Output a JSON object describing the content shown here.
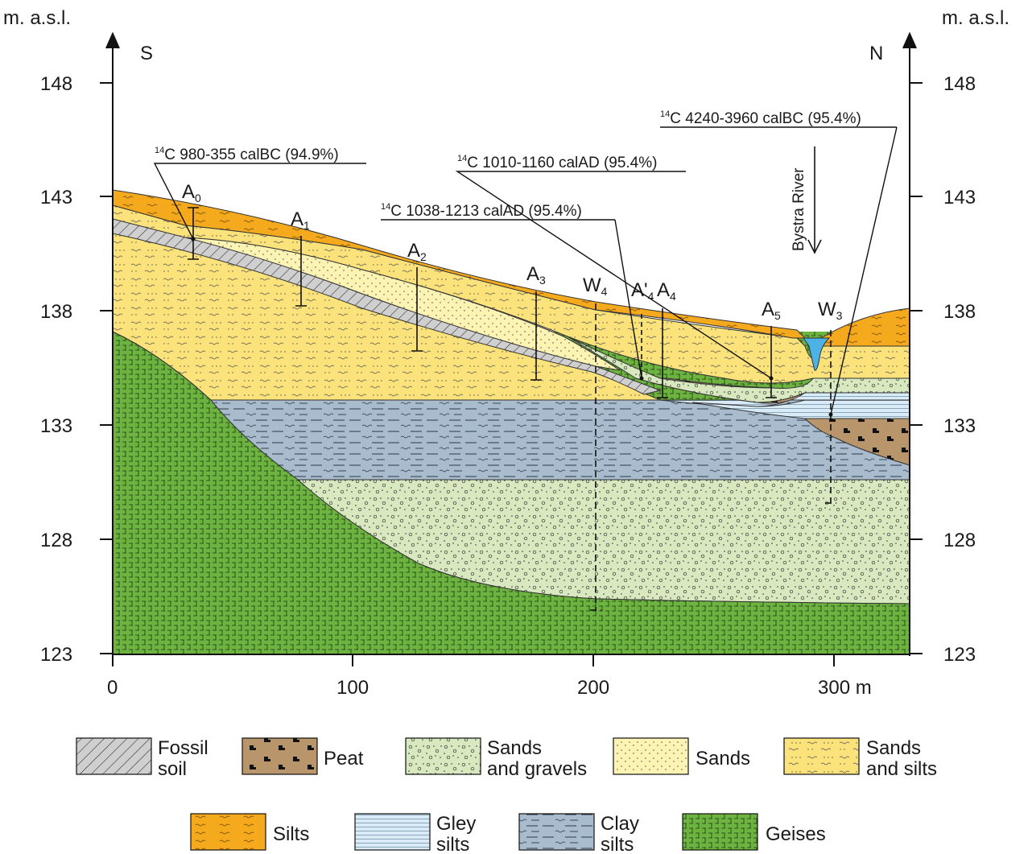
{
  "axes": {
    "left_unit": "m. a.s.l.",
    "right_unit": "m. a.s.l.",
    "south": "S",
    "north": "N",
    "y_ticks": [
      "148",
      "143",
      "138",
      "133",
      "128",
      "123"
    ],
    "x_ticks": [
      "0",
      "100",
      "200",
      "300 m"
    ]
  },
  "boreholes": [
    {
      "base": "A",
      "sub": "0"
    },
    {
      "base": "A",
      "sub": "1"
    },
    {
      "base": "A",
      "sub": "2"
    },
    {
      "base": "A",
      "sub": "3"
    },
    {
      "base": "W",
      "sub": "4"
    },
    {
      "base": "A'",
      "sub": "4"
    },
    {
      "base": "A",
      "sub": "4"
    },
    {
      "base": "A",
      "sub": "5"
    },
    {
      "base": "W",
      "sub": "3"
    }
  ],
  "dates": [
    {
      "sup": "14",
      "text": "C 980-355 calBC (94.9%)"
    },
    {
      "sup": "14",
      "text": "C 1038-1213 calAD (95.4%)"
    },
    {
      "sup": "14",
      "text": "C 1010-1160 calAD (95.4%)"
    },
    {
      "sup": "14",
      "text": "C 4240-3960 calBC (95.4%)"
    }
  ],
  "river": "Bystra River",
  "legend": [
    {
      "line1": "Fossil",
      "line2": "soil"
    },
    {
      "line1": "Peat",
      "line2": ""
    },
    {
      "line1": "Sands",
      "line2": "and gravels"
    },
    {
      "line1": "Sands",
      "line2": ""
    },
    {
      "line1": "Sands",
      "line2": "and silts"
    },
    {
      "line1": "Silts",
      "line2": ""
    },
    {
      "line1": "Gley",
      "line2": "silts"
    },
    {
      "line1": "Clay",
      "line2": "silts"
    },
    {
      "line1": "Geises",
      "line2": ""
    }
  ],
  "colors": {
    "geises": "#6db33f",
    "sands_gravels": "#d8e8bf",
    "clay_silts": "#a9bccd",
    "gley_silts": "#d9ebf6",
    "peat": "#b8956a",
    "sands": "#fdf4b4",
    "sands_silts": "#fbe27a",
    "silts": "#f5aa1e",
    "fossil_soil": "#cfcfcf",
    "water": "#4db3e6"
  }
}
